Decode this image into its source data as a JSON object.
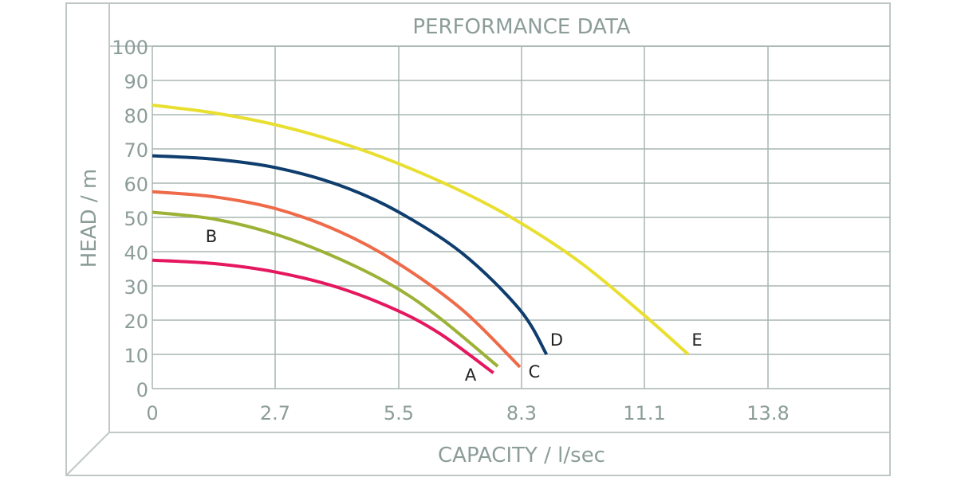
{
  "chart": {
    "title": "PERFORMANCE DATA",
    "xlabel": "CAPACITY / l/sec",
    "ylabel": "HEAD / m",
    "x_ticks": [
      "0",
      "2.7",
      "5.5",
      "8.3",
      "11.1",
      "13.8"
    ],
    "y_ticks": [
      "0",
      "10",
      "20",
      "30",
      "40",
      "50",
      "60",
      "70",
      "80",
      "90",
      "100"
    ]
  },
  "colors": {
    "frame": "#bfc8c6",
    "grid": "#a9b5b2",
    "text": "#8c9d99",
    "label": "#222222",
    "A": "#e5175f",
    "B": "#9cb236",
    "C": "#ee6a48",
    "D": "#0e3d6e",
    "E": "#e8df30"
  },
  "chart_data": {
    "type": "line",
    "title": "PERFORMANCE DATA",
    "xlabel": "CAPACITY / l/sec",
    "ylabel": "HEAD / m",
    "xlim": [
      0,
      16.6
    ],
    "ylim": [
      0,
      100
    ],
    "x_ticks": [
      0,
      2.7,
      5.5,
      8.3,
      11.1,
      13.8
    ],
    "y_ticks": [
      0,
      10,
      20,
      30,
      40,
      50,
      60,
      70,
      80,
      90,
      100
    ],
    "grid": true,
    "legend": "inline labels at curve ends",
    "series": [
      {
        "name": "A",
        "color": "#e5175f",
        "x": [
          0,
          1.4,
          2.8,
          4.2,
          5.5,
          6.5,
          7.7
        ],
        "y": [
          37.5,
          36.5,
          34,
          29.5,
          23,
          16,
          4.6
        ]
      },
      {
        "name": "B",
        "color": "#9cb236",
        "x": [
          0,
          1.4,
          2.8,
          4.2,
          5.5,
          6.5,
          7.8
        ],
        "y": [
          51.5,
          49.5,
          45,
          38,
          29.5,
          20.5,
          6.5
        ]
      },
      {
        "name": "C",
        "color": "#ee6a48",
        "x": [
          0,
          1.4,
          2.8,
          4.2,
          5.5,
          7.0,
          8.3
        ],
        "y": [
          57.5,
          56,
          52.5,
          46,
          37,
          23,
          6.3
        ]
      },
      {
        "name": "D",
        "color": "#0e3d6e",
        "x": [
          0,
          1.4,
          2.8,
          4.2,
          5.5,
          7.0,
          8.3,
          8.9
        ],
        "y": [
          68,
          67,
          64.5,
          59.5,
          52,
          39.5,
          23,
          10
        ]
      },
      {
        "name": "E",
        "color": "#e8df30",
        "x": [
          0,
          1.4,
          2.8,
          4.2,
          5.5,
          7.0,
          8.3,
          9.7,
          11.1,
          12.1
        ],
        "y": [
          82.8,
          80.5,
          77,
          72,
          66,
          57.5,
          48.5,
          36.5,
          21.5,
          10
        ]
      }
    ]
  }
}
